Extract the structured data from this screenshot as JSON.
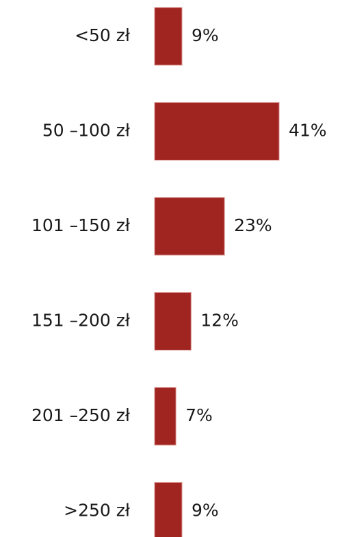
{
  "chart_data": {
    "type": "bar",
    "orientation": "horizontal",
    "categories": [
      "<50 zł",
      "50 –100 zł",
      "101 –150 zł",
      "151 –200 zł",
      "201 –250 zł",
      ">250 zł"
    ],
    "values": [
      9,
      41,
      23,
      12,
      7,
      9
    ],
    "value_labels": [
      "9%",
      "41%",
      "23%",
      "12%",
      "7%",
      "9%"
    ],
    "color": "#a0241f"
  }
}
